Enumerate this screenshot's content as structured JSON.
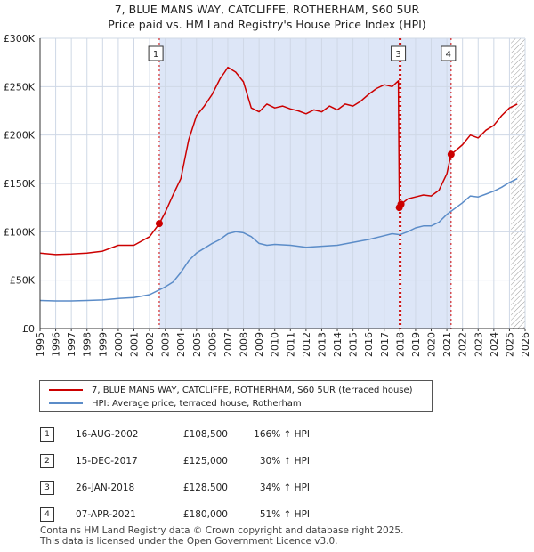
{
  "title_line1": "7, BLUE MANS WAY, CATCLIFFE, ROTHERHAM, S60 5UR",
  "title_line2": "Price paid vs. HM Land Registry's House Price Index (HPI)",
  "colors": {
    "property": "#cc0000",
    "hpi": "#5b8cc8",
    "shade": "#dde6f7",
    "grid": "#cfd8e6"
  },
  "legend": {
    "property_label": "7, BLUE MANS WAY, CATCLIFFE, ROTHERHAM, S60 5UR (terraced house)",
    "hpi_label": "HPI: Average price, terraced house, Rotherham"
  },
  "transactions": [
    {
      "num": "1",
      "date": "16-AUG-2002",
      "price": "£108,500",
      "hpi": "166% ↑ HPI"
    },
    {
      "num": "2",
      "date": "15-DEC-2017",
      "price": "£125,000",
      "hpi": "30% ↑ HPI"
    },
    {
      "num": "3",
      "date": "26-JAN-2018",
      "price": "£128,500",
      "hpi": "34% ↑ HPI"
    },
    {
      "num": "4",
      "date": "07-APR-2021",
      "price": "£180,000",
      "hpi": "51% ↑ HPI"
    }
  ],
  "footer_line1": "Contains HM Land Registry data © Crown copyright and database right 2025.",
  "footer_line2": "This data is licensed under the Open Government Licence v3.0.",
  "chart_data": {
    "type": "line",
    "title": "7, BLUE MANS WAY, CATCLIFFE, ROTHERHAM, S60 5UR",
    "subtitle": "Price paid vs. HM Land Registry's House Price Index (HPI)",
    "xlim": [
      1995,
      2026
    ],
    "ylim": [
      0,
      300000
    ],
    "x_ticks": [
      1995,
      1996,
      1997,
      1998,
      1999,
      2000,
      2001,
      2002,
      2003,
      2004,
      2005,
      2006,
      2007,
      2008,
      2009,
      2010,
      2011,
      2012,
      2013,
      2014,
      2015,
      2016,
      2017,
      2018,
      2019,
      2020,
      2021,
      2022,
      2023,
      2024,
      2025,
      2026
    ],
    "y_ticks": [
      {
        "value": 0,
        "label": "£0"
      },
      {
        "value": 50000,
        "label": "£50K"
      },
      {
        "value": 100000,
        "label": "£100K"
      },
      {
        "value": 150000,
        "label": "£150K"
      },
      {
        "value": 200000,
        "label": "£200K"
      },
      {
        "value": 250000,
        "label": "£250K"
      },
      {
        "value": 300000,
        "label": "£300K"
      }
    ],
    "shaded_spans": [
      [
        2002.62,
        2017.96
      ],
      [
        2018.07,
        2021.27
      ]
    ],
    "hatched_from": 2025.1,
    "series": [
      {
        "name": "7, BLUE MANS WAY, CATCLIFFE, ROTHERHAM, S60 5UR (terraced house)",
        "color": "#cc0000",
        "points": [
          [
            1995,
            78000
          ],
          [
            1996,
            76500
          ],
          [
            1997,
            77000
          ],
          [
            1998,
            78000
          ],
          [
            1999,
            80000
          ],
          [
            2000,
            86000
          ],
          [
            2001,
            86000
          ],
          [
            2002,
            95000
          ],
          [
            2002.62,
            108500
          ],
          [
            2003,
            120000
          ],
          [
            2003.5,
            138000
          ],
          [
            2004,
            155000
          ],
          [
            2004.5,
            195000
          ],
          [
            2005,
            220000
          ],
          [
            2005.5,
            230000
          ],
          [
            2006,
            242000
          ],
          [
            2006.5,
            258000
          ],
          [
            2006.8,
            265000
          ],
          [
            2007,
            270000
          ],
          [
            2007.5,
            265000
          ],
          [
            2008,
            255000
          ],
          [
            2008.5,
            228000
          ],
          [
            2009,
            224000
          ],
          [
            2009.5,
            232000
          ],
          [
            2010,
            228000
          ],
          [
            2010.5,
            230000
          ],
          [
            2011,
            227000
          ],
          [
            2011.5,
            225000
          ],
          [
            2012,
            222000
          ],
          [
            2012.5,
            226000
          ],
          [
            2013,
            224000
          ],
          [
            2013.5,
            230000
          ],
          [
            2014,
            226000
          ],
          [
            2014.5,
            232000
          ],
          [
            2015,
            230000
          ],
          [
            2015.5,
            235000
          ],
          [
            2016,
            242000
          ],
          [
            2016.5,
            248000
          ],
          [
            2017,
            252000
          ],
          [
            2017.5,
            250000
          ],
          [
            2017.9,
            256000
          ],
          [
            2017.96,
            125000
          ],
          [
            2018.07,
            128500
          ],
          [
            2018.5,
            134000
          ],
          [
            2019,
            136000
          ],
          [
            2019.5,
            138000
          ],
          [
            2020,
            137000
          ],
          [
            2020.5,
            143000
          ],
          [
            2021,
            160000
          ],
          [
            2021.27,
            180000
          ],
          [
            2021.5,
            183000
          ],
          [
            2022,
            190000
          ],
          [
            2022.5,
            200000
          ],
          [
            2023,
            197000
          ],
          [
            2023.5,
            205000
          ],
          [
            2024,
            210000
          ],
          [
            2024.5,
            220000
          ],
          [
            2025,
            228000
          ],
          [
            2025.5,
            232000
          ]
        ]
      },
      {
        "name": "HPI: Average price, terraced house, Rotherham",
        "color": "#5b8cc8",
        "points": [
          [
            1995,
            29000
          ],
          [
            1996,
            28500
          ],
          [
            1997,
            28500
          ],
          [
            1998,
            29000
          ],
          [
            1999,
            29500
          ],
          [
            2000,
            31000
          ],
          [
            2001,
            32000
          ],
          [
            2002,
            35000
          ],
          [
            2003,
            43000
          ],
          [
            2003.5,
            48000
          ],
          [
            2004,
            58000
          ],
          [
            2004.5,
            70000
          ],
          [
            2005,
            78000
          ],
          [
            2005.5,
            83000
          ],
          [
            2006,
            88000
          ],
          [
            2006.5,
            92000
          ],
          [
            2007,
            98000
          ],
          [
            2007.5,
            100000
          ],
          [
            2008,
            99000
          ],
          [
            2008.5,
            95000
          ],
          [
            2009,
            88000
          ],
          [
            2009.5,
            86000
          ],
          [
            2010,
            87000
          ],
          [
            2011,
            86000
          ],
          [
            2012,
            84000
          ],
          [
            2013,
            85000
          ],
          [
            2014,
            86000
          ],
          [
            2015,
            89000
          ],
          [
            2016,
            92000
          ],
          [
            2017,
            96000
          ],
          [
            2017.5,
            98000
          ],
          [
            2018,
            97000
          ],
          [
            2018.5,
            100000
          ],
          [
            2019,
            104000
          ],
          [
            2019.5,
            106000
          ],
          [
            2020,
            106000
          ],
          [
            2020.5,
            110000
          ],
          [
            2021,
            118000
          ],
          [
            2021.5,
            124000
          ],
          [
            2022,
            130000
          ],
          [
            2022.5,
            137000
          ],
          [
            2023,
            136000
          ],
          [
            2023.5,
            139000
          ],
          [
            2024,
            142000
          ],
          [
            2024.5,
            146000
          ],
          [
            2025,
            151000
          ],
          [
            2025.5,
            155000
          ]
        ]
      }
    ],
    "markers": [
      {
        "label": "1",
        "x": 2002.62,
        "y": 108500
      },
      {
        "label": "2",
        "x": 2017.96,
        "y": 125000
      },
      {
        "label": "3",
        "x": 2018.07,
        "y": 128500
      },
      {
        "label": "4",
        "x": 2021.27,
        "y": 180000
      }
    ],
    "marker_boxes": [
      {
        "label": "1",
        "x": 2002.4
      },
      {
        "label": "3",
        "x": 2017.9
      },
      {
        "label": "4",
        "x": 2021.1
      }
    ]
  }
}
